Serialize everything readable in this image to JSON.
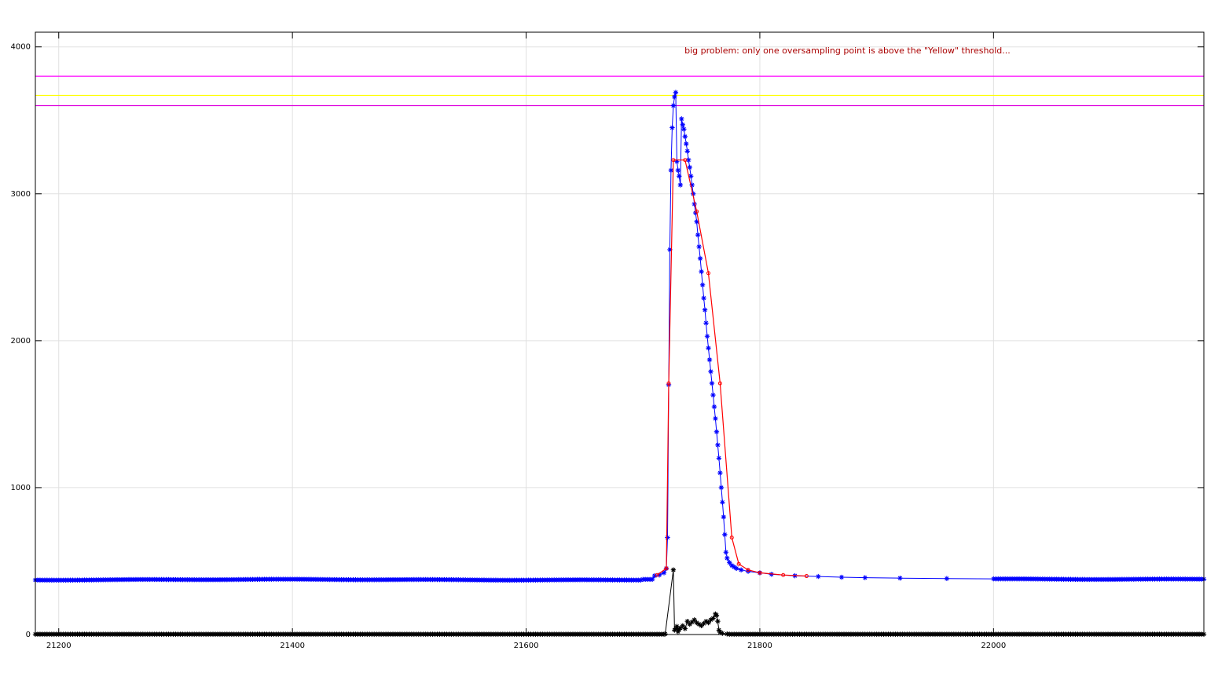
{
  "chart_data": {
    "type": "line",
    "title": "",
    "xlabel": "",
    "ylabel": "",
    "xlim": [
      21180,
      22180
    ],
    "ylim": [
      0,
      4100
    ],
    "grid": true,
    "x_ticks": [
      21200,
      21400,
      21600,
      21800,
      22000
    ],
    "x_tick_labels": [
      "21200",
      "21400",
      "21600",
      "21800",
      "22000"
    ],
    "y_ticks": [
      0,
      1000,
      2000,
      3000,
      4000
    ],
    "y_tick_labels": [
      "0",
      "1000",
      "2000",
      "3000",
      "4000"
    ],
    "annotation": {
      "text": "big problem: only one oversampling point is above the \"Yellow\" threshold...",
      "x": 21875,
      "y": 3955,
      "color": "#aa0000"
    },
    "thresholds": [
      {
        "y": 3800,
        "color": "#ff00ff"
      },
      {
        "y": 3670,
        "color": "#ffff00"
      },
      {
        "y": 3600,
        "color": "#dd00dd"
      }
    ],
    "series": [
      {
        "color": "#0000ff",
        "marker": "*",
        "kind": "signal",
        "baseline_left": 373,
        "baseline_right": 378,
        "x_range": [
          21180,
          22180
        ],
        "step": 2,
        "peak_points": [
          [
            21710,
            400
          ],
          [
            21714,
            405
          ],
          [
            21718,
            420
          ],
          [
            21720,
            450
          ],
          [
            21721,
            660
          ],
          [
            21722,
            1700
          ],
          [
            21723,
            2620
          ],
          [
            21724,
            3160
          ],
          [
            21725,
            3450
          ],
          [
            21726,
            3600
          ],
          [
            21727,
            3660
          ],
          [
            21728,
            3690
          ],
          [
            21729,
            3220
          ],
          [
            21730,
            3160
          ],
          [
            21731,
            3120
          ],
          [
            21732,
            3060
          ],
          [
            21733,
            3510
          ],
          [
            21734,
            3470
          ],
          [
            21735,
            3440
          ],
          [
            21736,
            3390
          ],
          [
            21737,
            3340
          ],
          [
            21738,
            3290
          ],
          [
            21739,
            3230
          ],
          [
            21740,
            3180
          ],
          [
            21741,
            3120
          ],
          [
            21742,
            3060
          ],
          [
            21743,
            3000
          ],
          [
            21744,
            2930
          ],
          [
            21745,
            2870
          ],
          [
            21746,
            2810
          ],
          [
            21747,
            2720
          ],
          [
            21748,
            2640
          ],
          [
            21749,
            2560
          ],
          [
            21750,
            2470
          ],
          [
            21751,
            2380
          ],
          [
            21752,
            2290
          ],
          [
            21753,
            2210
          ],
          [
            21754,
            2120
          ],
          [
            21755,
            2030
          ],
          [
            21756,
            1950
          ],
          [
            21757,
            1870
          ],
          [
            21758,
            1790
          ],
          [
            21759,
            1710
          ],
          [
            21760,
            1630
          ],
          [
            21761,
            1550
          ],
          [
            21762,
            1470
          ],
          [
            21763,
            1380
          ],
          [
            21764,
            1290
          ],
          [
            21765,
            1200
          ],
          [
            21766,
            1100
          ],
          [
            21767,
            1000
          ],
          [
            21768,
            900
          ],
          [
            21769,
            800
          ],
          [
            21770,
            680
          ],
          [
            21771,
            560
          ],
          [
            21772,
            520
          ],
          [
            21774,
            490
          ],
          [
            21776,
            470
          ],
          [
            21778,
            460
          ],
          [
            21780,
            450
          ],
          [
            21784,
            440
          ],
          [
            21790,
            430
          ],
          [
            21800,
            420
          ],
          [
            21810,
            410
          ],
          [
            21830,
            400
          ],
          [
            21850,
            395
          ],
          [
            21870,
            390
          ],
          [
            21890,
            387
          ],
          [
            21920,
            384
          ],
          [
            21960,
            381
          ],
          [
            22000,
            379
          ]
        ]
      },
      {
        "color": "#ff0000",
        "marker": "none",
        "kind": "envelope",
        "points": [
          [
            21712,
            405
          ],
          [
            21720,
            450
          ],
          [
            21722,
            1710
          ],
          [
            21726,
            3230
          ],
          [
            21736,
            3230
          ],
          [
            21746,
            2880
          ],
          [
            21756,
            2460
          ],
          [
            21766,
            1710
          ],
          [
            21776,
            660
          ],
          [
            21782,
            480
          ],
          [
            21790,
            440
          ],
          [
            21800,
            420
          ],
          [
            21820,
            405
          ],
          [
            21840,
            398
          ]
        ]
      },
      {
        "color": "#000000",
        "marker": "*",
        "kind": "error",
        "baseline": 2,
        "x_range": [
          21180,
          22180
        ],
        "step": 2,
        "active_points": [
          [
            21719,
            4
          ],
          [
            21726,
            440
          ],
          [
            21727,
            30
          ],
          [
            21728,
            40
          ],
          [
            21729,
            55
          ],
          [
            21730,
            20
          ],
          [
            21731,
            35
          ],
          [
            21732,
            45
          ],
          [
            21734,
            60
          ],
          [
            21736,
            40
          ],
          [
            21738,
            90
          ],
          [
            21740,
            70
          ],
          [
            21742,
            85
          ],
          [
            21744,
            100
          ],
          [
            21746,
            80
          ],
          [
            21748,
            70
          ],
          [
            21750,
            60
          ],
          [
            21752,
            75
          ],
          [
            21754,
            90
          ],
          [
            21756,
            80
          ],
          [
            21758,
            100
          ],
          [
            21760,
            110
          ],
          [
            21762,
            140
          ],
          [
            21763,
            130
          ],
          [
            21764,
            90
          ],
          [
            21765,
            30
          ],
          [
            21766,
            15
          ],
          [
            21768,
            8
          ],
          [
            21772,
            4
          ]
        ]
      }
    ]
  }
}
